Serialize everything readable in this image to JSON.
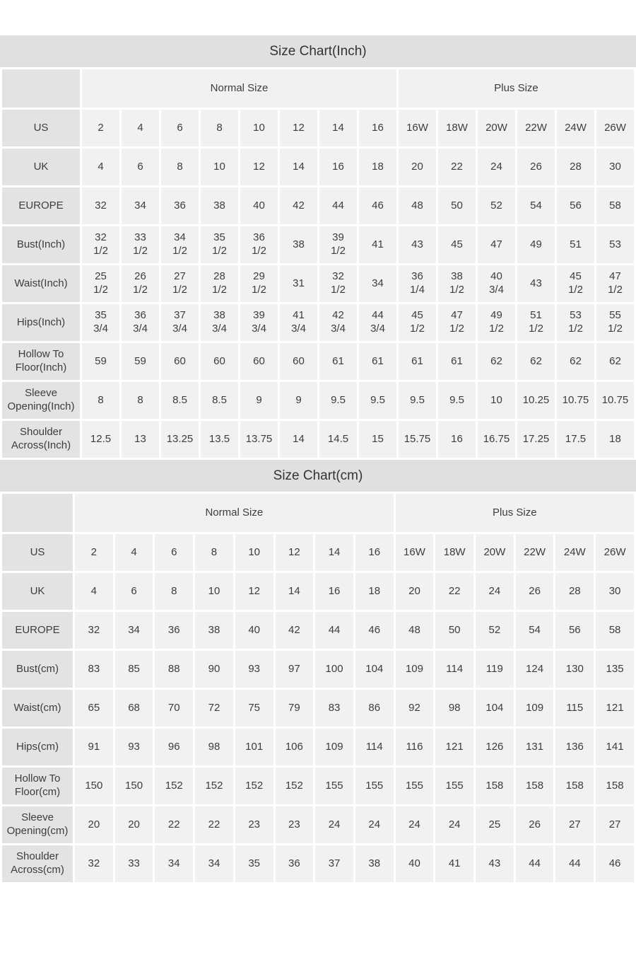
{
  "colors": {
    "title_bar_bg": "#e0e0e0",
    "label_cell_bg": "#e3e3e3",
    "data_cell_bg": "#f1f1f1",
    "text": "#3d3d3d",
    "title_text": "#333333"
  },
  "tables": [
    {
      "title": "Size Chart(Inch)",
      "label_col_width": 110,
      "group_headers": [
        {
          "label": "",
          "span": 1
        },
        {
          "label": "Normal Size",
          "span": 8
        },
        {
          "label": "Plus Size",
          "span": 6
        }
      ],
      "rows": [
        {
          "label": "US",
          "values": [
            "2",
            "4",
            "6",
            "8",
            "10",
            "12",
            "14",
            "16",
            "16W",
            "18W",
            "20W",
            "22W",
            "24W",
            "26W"
          ]
        },
        {
          "label": "UK",
          "values": [
            "4",
            "6",
            "8",
            "10",
            "12",
            "14",
            "16",
            "18",
            "20",
            "22",
            "24",
            "26",
            "28",
            "30"
          ]
        },
        {
          "label": "EUROPE",
          "values": [
            "32",
            "34",
            "36",
            "38",
            "40",
            "42",
            "44",
            "46",
            "48",
            "50",
            "52",
            "54",
            "56",
            "58"
          ]
        },
        {
          "label": "Bust(Inch)",
          "values": [
            "32\n1/2",
            "33\n1/2",
            "34\n1/2",
            "35\n1/2",
            "36\n1/2",
            "38",
            "39\n1/2",
            "41",
            "43",
            "45",
            "47",
            "49",
            "51",
            "53"
          ]
        },
        {
          "label": "Waist(Inch)",
          "values": [
            "25\n1/2",
            "26\n1/2",
            "27\n1/2",
            "28\n1/2",
            "29\n1/2",
            "31",
            "32\n1/2",
            "34",
            "36\n1/4",
            "38\n1/2",
            "40\n3/4",
            "43",
            "45\n1/2",
            "47\n1/2"
          ]
        },
        {
          "label": "Hips(Inch)",
          "values": [
            "35\n3/4",
            "36\n3/4",
            "37\n3/4",
            "38\n3/4",
            "39\n3/4",
            "41\n3/4",
            "42\n3/4",
            "44\n3/4",
            "45\n1/2",
            "47\n1/2",
            "49\n1/2",
            "51\n1/2",
            "53\n1/2",
            "55\n1/2"
          ]
        },
        {
          "label": "Hollow To Floor(Inch)",
          "values": [
            "59",
            "59",
            "60",
            "60",
            "60",
            "60",
            "61",
            "61",
            "61",
            "61",
            "62",
            "62",
            "62",
            "62"
          ]
        },
        {
          "label": "Sleeve Opening(Inch)",
          "values": [
            "8",
            "8",
            "8.5",
            "8.5",
            "9",
            "9",
            "9.5",
            "9.5",
            "9.5",
            "9.5",
            "10",
            "10.25",
            "10.75",
            "10.75"
          ]
        },
        {
          "label": "Shoulder Across(Inch)",
          "values": [
            "12.5",
            "13",
            "13.25",
            "13.5",
            "13.75",
            "14",
            "14.5",
            "15",
            "15.75",
            "16",
            "16.75",
            "17.25",
            "17.5",
            "18"
          ]
        }
      ]
    },
    {
      "title": "Size Chart(cm)",
      "label_col_width": 100,
      "group_headers": [
        {
          "label": "",
          "span": 1
        },
        {
          "label": "Normal Size",
          "span": 8
        },
        {
          "label": "Plus Size",
          "span": 6
        }
      ],
      "rows": [
        {
          "label": "US",
          "values": [
            "2",
            "4",
            "6",
            "8",
            "10",
            "12",
            "14",
            "16",
            "16W",
            "18W",
            "20W",
            "22W",
            "24W",
            "26W"
          ]
        },
        {
          "label": "UK",
          "values": [
            "4",
            "6",
            "8",
            "10",
            "12",
            "14",
            "16",
            "18",
            "20",
            "22",
            "24",
            "26",
            "28",
            "30"
          ]
        },
        {
          "label": "EUROPE",
          "values": [
            "32",
            "34",
            "36",
            "38",
            "40",
            "42",
            "44",
            "46",
            "48",
            "50",
            "52",
            "54",
            "56",
            "58"
          ]
        },
        {
          "label": "Bust(cm)",
          "values": [
            "83",
            "85",
            "88",
            "90",
            "93",
            "97",
            "100",
            "104",
            "109",
            "114",
            "119",
            "124",
            "130",
            "135"
          ]
        },
        {
          "label": "Waist(cm)",
          "values": [
            "65",
            "68",
            "70",
            "72",
            "75",
            "79",
            "83",
            "86",
            "92",
            "98",
            "104",
            "109",
            "115",
            "121"
          ]
        },
        {
          "label": "Hips(cm)",
          "values": [
            "91",
            "93",
            "96",
            "98",
            "101",
            "106",
            "109",
            "114",
            "116",
            "121",
            "126",
            "131",
            "136",
            "141"
          ]
        },
        {
          "label": "Hollow To Floor(cm)",
          "values": [
            "150",
            "150",
            "152",
            "152",
            "152",
            "152",
            "155",
            "155",
            "155",
            "155",
            "158",
            "158",
            "158",
            "158"
          ]
        },
        {
          "label": "Sleeve Opening(cm)",
          "values": [
            "20",
            "20",
            "22",
            "22",
            "23",
            "23",
            "24",
            "24",
            "24",
            "24",
            "25",
            "26",
            "27",
            "27"
          ]
        },
        {
          "label": "Shoulder Across(cm)",
          "values": [
            "32",
            "33",
            "34",
            "34",
            "35",
            "36",
            "37",
            "38",
            "40",
            "41",
            "43",
            "44",
            "44",
            "46"
          ]
        }
      ]
    }
  ]
}
